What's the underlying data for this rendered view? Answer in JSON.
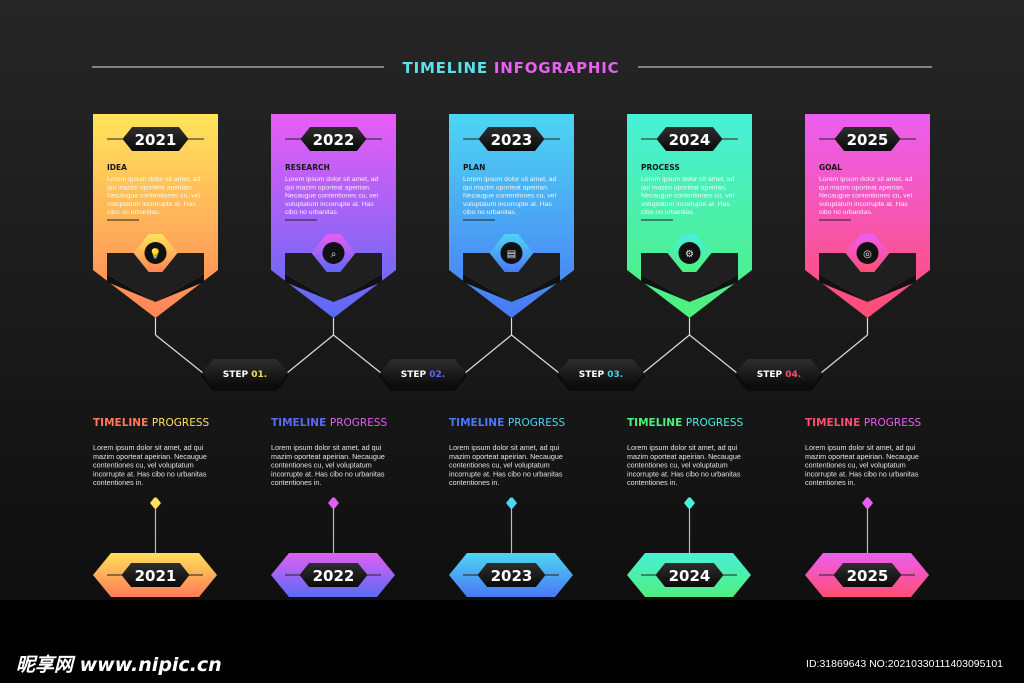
{
  "header": {
    "title_part1": "TIMELINE",
    "title_part2": "INFOGRAPHIC",
    "colors": {
      "part1": "#5fe0e8",
      "part2": "#e860f0"
    }
  },
  "cards": [
    {
      "year": "2021",
      "title": "IDEA",
      "icon": "lightbulb-icon",
      "glyph": "💡",
      "top": "#ffe55a",
      "bottom": "#ff8458",
      "lines": [
        "Lorem ipsum dolor sit amet, ad",
        "qui mazim oporteat apeirian.",
        "Necaugue contentiones cu, vel",
        "voluptatum incorrupte at. Has",
        "cibo no urbanitas."
      ]
    },
    {
      "year": "2022",
      "title": "RESEARCH",
      "icon": "magnifier-icon",
      "glyph": "⌕",
      "top": "#ea5cf6",
      "bottom": "#5a6af6",
      "lines": [
        "Lorem ipsum dolor sit amet, ad",
        "qui mazim oporteat apeirian.",
        "Necaugue contentiones cu, vel",
        "voluptatum incorrupte at. Has",
        "cibo no urbanitas."
      ]
    },
    {
      "year": "2023",
      "title": "PLAN",
      "icon": "clipboard-icon",
      "glyph": "▤",
      "top": "#4cd6f2",
      "bottom": "#4a78f6",
      "lines": [
        "Lorem ipsum dolor sit amet, ad",
        "qui mazim oporteat apeirian.",
        "Necaugue contentiones cu, vel",
        "voluptatum incorrupte at. Has",
        "cibo no urbanitas."
      ]
    },
    {
      "year": "2024",
      "title": "PROCESS",
      "icon": "gear-icon",
      "glyph": "⚙",
      "top": "#48f0d8",
      "bottom": "#4ef07c",
      "lines": [
        "Lorem ipsum dolor sit amet, ad",
        "qui mazim oporteat apeirian.",
        "Necaugue contentiones cu, vel",
        "voluptatum incorrupte at. Has",
        "cibo no urbanitas."
      ]
    },
    {
      "year": "2025",
      "title": "GOAL",
      "icon": "target-icon",
      "glyph": "◎",
      "top": "#ec5ef2",
      "bottom": "#ff4e72",
      "lines": [
        "Lorem ipsum dolor sit amet, ad",
        "qui mazim oporteat apeirian.",
        "Necaugue contentiones cu, vel",
        "voluptatum incorrupte at. Has",
        "cibo no urbanitas."
      ]
    }
  ],
  "steps": [
    {
      "label": "STEP",
      "number": "01.",
      "color": "#f4e04e"
    },
    {
      "label": "STEP",
      "number": "02.",
      "color": "#5a6af6"
    },
    {
      "label": "STEP",
      "number": "03.",
      "color": "#3fd4e2"
    },
    {
      "label": "STEP",
      "number": "04.",
      "color": "#ff4e72"
    }
  ],
  "progress": [
    {
      "word1": "TIMELINE",
      "word2": "PROGRESS",
      "color1": "#ff7a58",
      "color2": "#ffe05a",
      "year": "2021",
      "lines": [
        "Lorem ipsum dolor sit amet, ad qui",
        "mazim oporteat apeirian. Necaugue",
        "contentiones cu, vel voluptatum",
        "incorrupte at. Has cibo no urbanitas",
        "contentiones in."
      ]
    },
    {
      "word1": "TIMELINE",
      "word2": "PROGRESS",
      "color1": "#5a6af6",
      "color2": "#e060f2",
      "year": "2022",
      "lines": [
        "Lorem ipsum dolor sit amet, ad qui",
        "mazim oporteat apeirian. Necaugue",
        "contentiones cu, vel voluptatum",
        "incorrupte at. Has cibo no urbanitas",
        "contentiones in."
      ]
    },
    {
      "word1": "TIMELINE",
      "word2": "PROGRESS",
      "color1": "#4a78f6",
      "color2": "#4cd6f2",
      "year": "2023",
      "lines": [
        "Lorem ipsum dolor sit amet, ad qui",
        "mazim oporteat apeirian. Necaugue",
        "contentiones cu, vel voluptatum",
        "incorrupte at. Has cibo no urbanitas",
        "contentiones in."
      ]
    },
    {
      "word1": "TIMELINE",
      "word2": "PROGRESS",
      "color1": "#4ef07c",
      "color2": "#48f0d8",
      "year": "2024",
      "lines": [
        "Lorem ipsum dolor sit amet, ad qui",
        "mazim oporteat apeirian. Necaugue",
        "contentiones cu, vel voluptatum",
        "incorrupte at. Has cibo no urbanitas",
        "contentiones in."
      ]
    },
    {
      "word1": "TIMELINE",
      "word2": "PROGRESS",
      "color1": "#ff4e72",
      "color2": "#ec5ef2",
      "year": "2025",
      "lines": [
        "Lorem ipsum dolor sit amet, ad qui",
        "mazim oporteat apeirian. Necaugue",
        "contentiones cu, vel voluptatum",
        "incorrupte at. Has cibo no urbanitas",
        "contentiones in."
      ]
    }
  ],
  "watermark": {
    "logo": "昵享网 www.nipic.cn",
    "id": "ID:31869643 NO:20210330111403095101"
  }
}
